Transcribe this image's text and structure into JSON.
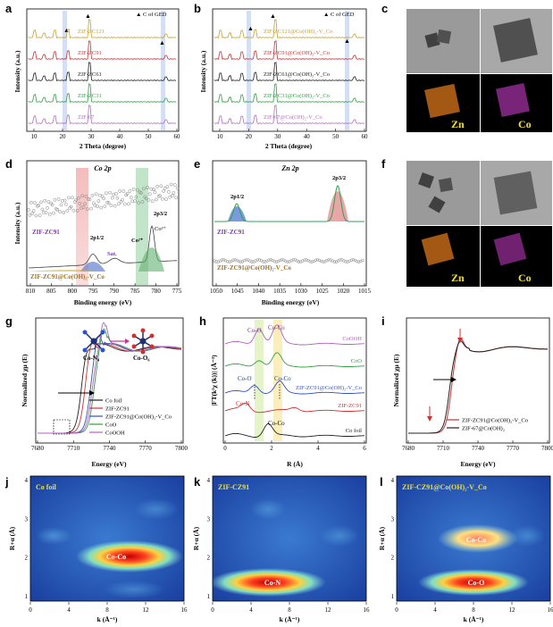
{
  "panels": {
    "a": {
      "label": "a",
      "legend": "▲ C of GED",
      "xlabel": "2 Theta (degree)",
      "ylabel": "Intensity (a.u.)",
      "xticks": [
        "10",
        "20",
        "30",
        "40",
        "50",
        "60"
      ],
      "traces": [
        {
          "name": "ZIF-ZC121",
          "color": "#c8a030"
        },
        {
          "name": "ZIF-ZC91",
          "color": "#d03030"
        },
        {
          "name": "ZIF-ZC61",
          "color": "#202020"
        },
        {
          "name": "ZIF-ZC31",
          "color": "#30a040"
        },
        {
          "name": "ZIF-67",
          "color": "#b070c0"
        }
      ]
    },
    "b": {
      "label": "b",
      "legend": "▲ C of GED",
      "xlabel": "2 Theta (degree)",
      "ylabel": "Intensity (a.u.)",
      "xticks": [
        "10",
        "20",
        "30",
        "40",
        "50",
        "60"
      ],
      "traces": [
        {
          "name": "ZIF-ZC121@Co(OH)₂-V_Co",
          "color": "#c8a030"
        },
        {
          "name": "ZIF-ZC91@Co(OH)₂-V_Co",
          "color": "#d03030"
        },
        {
          "name": "ZIF-ZC61@Co(OH)₂-V_Co",
          "color": "#202020"
        },
        {
          "name": "ZIF-ZC31@Co(OH)₂-V_Co",
          "color": "#30a040"
        },
        {
          "name": "ZIF-67@Co(OH)₂-V_Co",
          "color": "#b070c0"
        }
      ]
    },
    "c": {
      "label": "c",
      "elem1": "Zn",
      "elem2": "Co"
    },
    "d": {
      "label": "d",
      "title": "Co 2p",
      "xlabel": "Binding energy (eV)",
      "ylabel": "Intensity (a.u.)",
      "xticks": [
        "810",
        "805",
        "800",
        "795",
        "790",
        "785",
        "780",
        "775"
      ],
      "sample1": "ZIF-ZC91",
      "sample2": "ZIF-ZC91@Co(OH)₂-V_Co",
      "peak_p12": "2p1/2",
      "peak_p32": "2p3/2",
      "sat": "Sat.",
      "co2": "Co²⁺",
      "co3": "Co³⁺"
    },
    "e": {
      "label": "e",
      "title": "Zn 2p",
      "xlabel": "Binding energy (eV)",
      "xticks": [
        "1050",
        "1045",
        "1040",
        "1035",
        "1030",
        "1025",
        "1020",
        "1015"
      ],
      "sample1": "ZIF-ZC91",
      "sample2": "ZIF-ZC91@Co(OH)₂-V_Co",
      "peak_p12": "2p1/2",
      "peak_p32": "2p3/2"
    },
    "f": {
      "label": "f",
      "elem1": "Zn",
      "elem2": "Co"
    },
    "g": {
      "label": "g",
      "xlabel": "Energy (eV)",
      "ylabel": "Normalized χμ (E)",
      "xticks": [
        "7680",
        "7710",
        "7740",
        "7770",
        "7800"
      ],
      "legend": [
        {
          "name": "Co foil",
          "color": "#202020"
        },
        {
          "name": "ZIF-ZC91",
          "color": "#d03030"
        },
        {
          "name": "ZIF-ZC91@Co(OH)₂-V_Co",
          "color": "#3050c0"
        },
        {
          "name": "CoO",
          "color": "#30a040"
        },
        {
          "name": "CoOOH",
          "color": "#b060c0"
        }
      ],
      "struct1": "Co-N₄",
      "struct2": "Co-O₆"
    },
    "h": {
      "label": "h",
      "xlabel": "R (Å)",
      "ylabel": "|FT(k²χ (k))| (Å⁻³)",
      "xticks": [
        "0",
        "2",
        "4",
        "6"
      ],
      "traces": [
        {
          "name": "CoOOH",
          "color": "#b060c0"
        },
        {
          "name": "CoO",
          "color": "#30a040"
        },
        {
          "name": "ZIF-ZC91@Co(OH)₂-V_Co",
          "color": "#3050c0"
        },
        {
          "name": "ZIF-ZC91",
          "color": "#d03030"
        },
        {
          "name": "Co foil",
          "color": "#202020"
        }
      ],
      "ann": {
        "coo_top": "Co-O",
        "coco_top": "Co-Co",
        "coo_mid": "Co-O",
        "coco_mid": "Co-Co",
        "con": "Co-N",
        "coco_bot": "Co-Co"
      }
    },
    "i": {
      "label": "i",
      "xlabel": "Energy (eV)",
      "ylabel": "Normalized χμ (E)",
      "xticks": [
        "7680",
        "7710",
        "7740",
        "7770",
        "7800"
      ],
      "legend": [
        {
          "name": "ZIF-ZC91@Co(OH)₂-V_Co",
          "color": "#d03030"
        },
        {
          "name": "ZIF-67@Co(OH)₂",
          "color": "#202020"
        }
      ]
    },
    "j": {
      "label": "j",
      "title": "Co foil",
      "feature": "Co-Co",
      "xlabel": "k (Å⁻¹)",
      "ylabel": "R+α (Å)",
      "xticks": [
        "0",
        "4",
        "8",
        "12",
        "16"
      ],
      "yticks": [
        "1",
        "2",
        "3",
        "4"
      ]
    },
    "k": {
      "label": "k",
      "title": "ZIF-CZ91",
      "feature": "Co-N",
      "xlabel": "k (Å⁻¹)",
      "ylabel": "R+α (Å)",
      "xticks": [
        "0",
        "4",
        "8",
        "12",
        "16"
      ],
      "yticks": [
        "1",
        "2",
        "3",
        "4"
      ]
    },
    "l": {
      "label": "l",
      "title": "ZIF-CZ91@Co(OH)₂-V_Co",
      "feature1": "Co-Co",
      "feature2": "Co-O",
      "xlabel": "k (Å⁻¹)",
      "ylabel": "R+α (Å)",
      "xticks": [
        "0",
        "4",
        "8",
        "12",
        "16"
      ],
      "yticks": [
        "1",
        "2",
        "3",
        "4"
      ]
    }
  }
}
